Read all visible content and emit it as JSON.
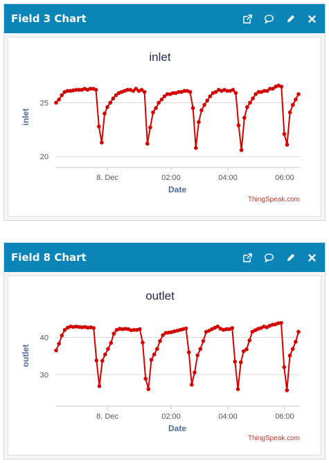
{
  "panels": [
    {
      "title": "Field 3 Chart",
      "icons": [
        "external-link-icon",
        "comment-icon",
        "edit-icon",
        "close-icon"
      ],
      "chart_data": {
        "type": "line",
        "title": "inlet",
        "ylabel": "inlet",
        "xlabel": "Date",
        "credit": "ThingSpeak.com",
        "ylim": [
          19.5,
          28.5
        ],
        "yticks": [
          "20",
          "25"
        ],
        "xticks": [
          "8. Dec",
          "02:00",
          "04:00",
          "06:00"
        ],
        "color": "#d40000",
        "series": [
          {
            "values": [
              25.0,
              25.3,
              25.7,
              26.0,
              26.1,
              26.1,
              26.15,
              26.2,
              26.2,
              26.2,
              26.3,
              26.2,
              26.3,
              26.3,
              26.2,
              22.8,
              21.3,
              24.0,
              24.6,
              25.0,
              25.4,
              25.7,
              25.9,
              26.0,
              26.1,
              26.2,
              26.2,
              26.1,
              26.3,
              26.1,
              26.2,
              26.0,
              21.2,
              22.7,
              24.1,
              24.5,
              25.0,
              25.3,
              25.6,
              25.8,
              25.8,
              25.9,
              25.9,
              26.0,
              26.0,
              26.1,
              26.1,
              26.0,
              24.5,
              20.8,
              23.2,
              24.3,
              24.8,
              25.2,
              25.6,
              25.9,
              26.0,
              26.2,
              26.1,
              26.2,
              26.1,
              26.1,
              26.2,
              25.9,
              22.9,
              20.6,
              23.6,
              24.6,
              25.0,
              25.4,
              25.8,
              26.0,
              26.0,
              26.1,
              26.1,
              26.3,
              26.3,
              26.5,
              26.6,
              26.5,
              22.1,
              21.1,
              24.1,
              24.8,
              25.3,
              25.8
            ]
          }
        ]
      }
    },
    {
      "title": "Field 8 Chart",
      "icons": [
        "external-link-icon",
        "comment-icon",
        "edit-icon",
        "close-icon"
      ],
      "chart_data": {
        "type": "line",
        "title": "outlet",
        "ylabel": "outlet",
        "xlabel": "Date",
        "credit": "ThingSpeak.com",
        "ylim": [
          23,
          49
        ],
        "yticks": [
          "30",
          "40"
        ],
        "xticks": [
          "8. Dec",
          "02:00",
          "04:00",
          "06:00"
        ],
        "color": "#d40000",
        "series": [
          {
            "values": [
              36.5,
              38.3,
              40.5,
              42.0,
              42.6,
              42.9,
              42.8,
              42.9,
              42.8,
              42.7,
              42.8,
              42.6,
              42.7,
              42.5,
              33.8,
              26.9,
              33.7,
              35.4,
              36.9,
              38.5,
              41.0,
              42.0,
              42.3,
              42.2,
              42.3,
              42.2,
              41.9,
              42.0,
              42.0,
              42.2,
              38.6,
              28.9,
              26.1,
              34.0,
              35.4,
              36.9,
              39.0,
              40.6,
              41.2,
              41.3,
              41.4,
              41.6,
              41.8,
              42.0,
              42.2,
              42.4,
              36.0,
              27.3,
              30.6,
              35.2,
              36.9,
              39.0,
              41.5,
              41.8,
              42.2,
              42.6,
              42.9,
              42.3,
              42.0,
              42.2,
              42.2,
              42.5,
              33.5,
              26.1,
              33.3,
              36.3,
              36.8,
              39.2,
              41.5,
              41.9,
              42.3,
              42.5,
              42.9,
              42.7,
              43.1,
              43.4,
              43.5,
              43.8,
              43.9,
              32.0,
              25.8,
              35.1,
              36.9,
              38.8,
              41.5
            ]
          }
        ]
      }
    }
  ]
}
